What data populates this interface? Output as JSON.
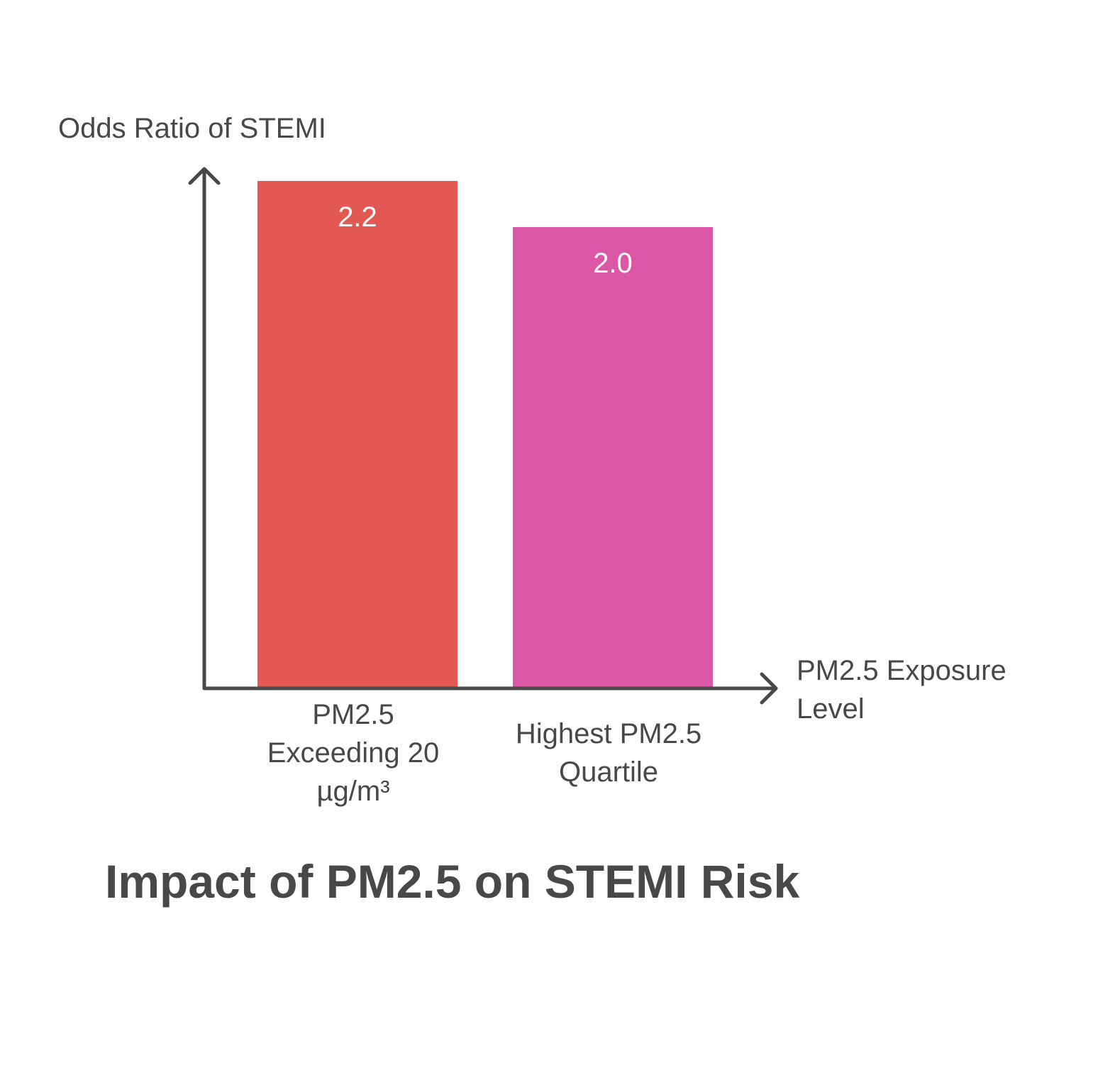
{
  "chart_data": {
    "type": "bar",
    "title": "Impact of PM2.5 on STEMI Risk",
    "ylabel": "Odds Ratio of STEMI",
    "xlabel": "PM2.5 Exposure Level",
    "categories": [
      "PM2.5 Exceeding 20 µg/m³",
      "Highest PM2.5 Quartile"
    ],
    "category_lines": [
      [
        "PM2.5",
        "Exceeding 20",
        "µg/m³"
      ],
      [
        "Highest PM2.5",
        "Quartile"
      ]
    ],
    "values": [
      2.2,
      2.0
    ],
    "value_labels": [
      "2.2",
      "2.0"
    ],
    "colors": [
      "#e45853",
      "#dc57a6"
    ],
    "ylim": [
      0,
      2.2
    ],
    "grid": false,
    "legend": "none"
  }
}
